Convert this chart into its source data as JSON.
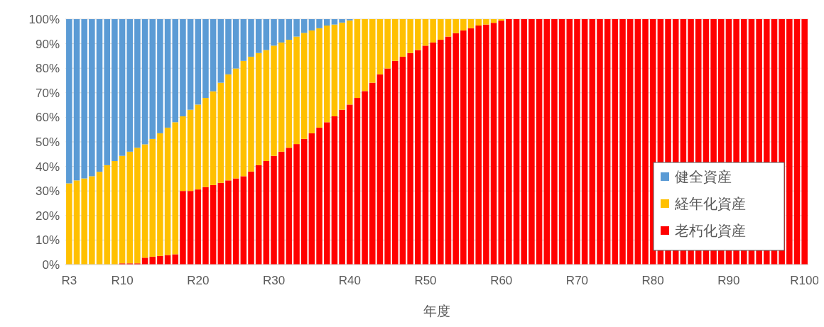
{
  "chart_data": {
    "type": "bar",
    "stacked": true,
    "xlabel": "年度",
    "categories": [
      "R3",
      null,
      null,
      null,
      null,
      null,
      null,
      "R10",
      null,
      null,
      null,
      null,
      null,
      null,
      null,
      null,
      null,
      "R20",
      null,
      null,
      null,
      null,
      null,
      null,
      null,
      null,
      null,
      "R30",
      null,
      null,
      null,
      null,
      null,
      null,
      null,
      null,
      null,
      "R40",
      null,
      null,
      null,
      null,
      null,
      null,
      null,
      null,
      null,
      "R50",
      null,
      null,
      null,
      null,
      null,
      null,
      null,
      null,
      null,
      "R60",
      null,
      null,
      null,
      null,
      null,
      null,
      null,
      null,
      null,
      "R70",
      null,
      null,
      null,
      null,
      null,
      null,
      null,
      null,
      null,
      "R80",
      null,
      null,
      null,
      null,
      null,
      null,
      null,
      null,
      null,
      "R90",
      null,
      null,
      null,
      null,
      null,
      null,
      null,
      null,
      null,
      "R100"
    ],
    "series": [
      {
        "name": "老朽化資産",
        "color": "#ff0000",
        "values": [
          0,
          0,
          0,
          0,
          0,
          0,
          0,
          0.5,
          0.5,
          0.5,
          2.8,
          3.2,
          3.5,
          3.9,
          4.2,
          30.0,
          30.0,
          30.6,
          31.6,
          32.4,
          33.3,
          34.3,
          35.1,
          36.0,
          37.9,
          40.5,
          42.2,
          44.3,
          46.0,
          47.6,
          49.1,
          51.2,
          53.5,
          55.8,
          58.0,
          60.4,
          63.1,
          65.2,
          67.9,
          70.7,
          74.1,
          77.5,
          79.9,
          83.0,
          84.7,
          86.2,
          87.4,
          89.2,
          90.5,
          91.6,
          92.9,
          94.3,
          95.4,
          96.3,
          97.4,
          97.8,
          98.5,
          99.4,
          100,
          100,
          100,
          100,
          100,
          100,
          100,
          100,
          100,
          100,
          100,
          100,
          100,
          100,
          100,
          100,
          100,
          100,
          100,
          100,
          100,
          100,
          100,
          100,
          100,
          100,
          100,
          100,
          100,
          100,
          100,
          100,
          100,
          100,
          100,
          100,
          100,
          100,
          100,
          100
        ]
      },
      {
        "name": "経年化資産",
        "color": "#ffc000",
        "values": [
          33.1,
          34.3,
          35.1,
          36.0,
          37.8,
          40.5,
          42.2,
          43.8,
          45.5,
          47.1,
          46.2,
          48.0,
          50.0,
          51.9,
          53.8,
          30.4,
          33.1,
          34.6,
          36.3,
          38.2,
          40.8,
          43.2,
          44.8,
          47.0,
          46.8,
          45.7,
          45.2,
          44.9,
          44.5,
          44.0,
          43.8,
          43.2,
          41.9,
          40.5,
          39.4,
          37.4,
          35.5,
          34.3,
          32.1,
          29.3,
          25.9,
          22.5,
          20.1,
          17.0,
          15.3,
          13.8,
          12.6,
          10.8,
          9.5,
          8.4,
          7.1,
          5.7,
          4.6,
          3.7,
          2.6,
          2.2,
          1.5,
          0.6,
          0,
          0,
          0,
          0,
          0,
          0,
          0,
          0,
          0,
          0,
          0,
          0,
          0,
          0,
          0,
          0,
          0,
          0,
          0,
          0,
          0,
          0,
          0,
          0,
          0,
          0,
          0,
          0,
          0,
          0,
          0,
          0,
          0,
          0,
          0,
          0,
          0,
          0,
          0,
          0
        ]
      },
      {
        "name": "健全資産",
        "color": "#5b9bd5",
        "values": [
          66.9,
          65.7,
          64.9,
          64.0,
          62.2,
          59.5,
          57.8,
          55.7,
          54.0,
          52.4,
          51.0,
          48.8,
          46.5,
          44.2,
          42.0,
          39.6,
          36.9,
          34.8,
          32.1,
          29.4,
          25.9,
          22.5,
          20.1,
          17.0,
          15.3,
          13.8,
          12.6,
          10.8,
          9.5,
          8.4,
          7.1,
          5.6,
          4.6,
          3.7,
          2.6,
          2.2,
          1.4,
          0.5,
          0,
          0,
          0,
          0,
          0,
          0,
          0,
          0,
          0,
          0,
          0,
          0,
          0,
          0,
          0,
          0,
          0,
          0,
          0,
          0,
          0,
          0,
          0,
          0,
          0,
          0,
          0,
          0,
          0,
          0,
          0,
          0,
          0,
          0,
          0,
          0,
          0,
          0,
          0,
          0,
          0,
          0,
          0,
          0,
          0,
          0,
          0,
          0,
          0,
          0,
          0,
          0,
          0,
          0,
          0,
          0,
          0,
          0,
          0,
          0
        ]
      }
    ],
    "ylim": [
      0,
      100
    ],
    "yticks": [
      {
        "value": 0,
        "label": "0%"
      },
      {
        "value": 10,
        "label": "10%"
      },
      {
        "value": 20,
        "label": "20%"
      },
      {
        "value": 30,
        "label": "30%"
      },
      {
        "value": 40,
        "label": "40%"
      },
      {
        "value": 50,
        "label": "50%"
      },
      {
        "value": 60,
        "label": "60%"
      },
      {
        "value": 70,
        "label": "70%"
      },
      {
        "value": 80,
        "label": "80%"
      },
      {
        "value": 90,
        "label": "90%"
      },
      {
        "value": 100,
        "label": "100%"
      }
    ],
    "grid": "y",
    "legend": "bottom right"
  }
}
